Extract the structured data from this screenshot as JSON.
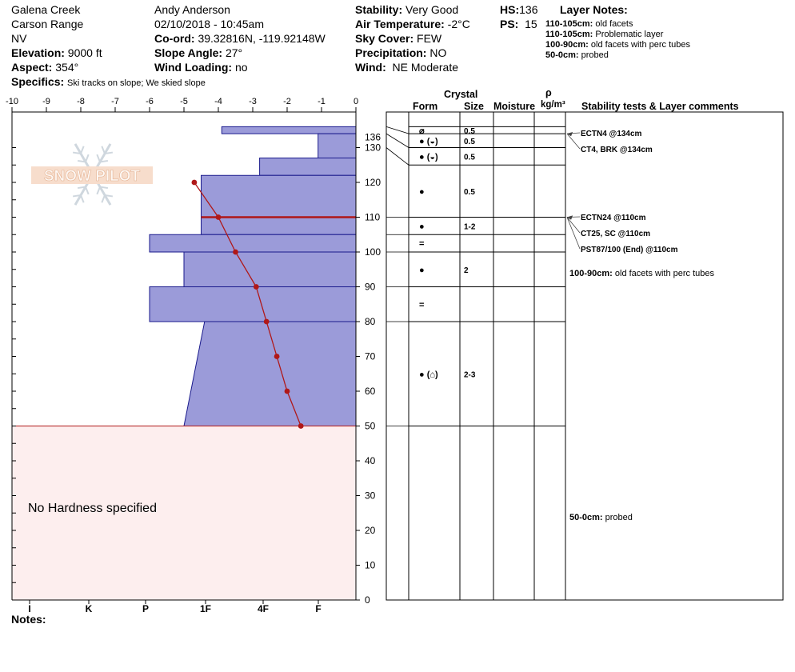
{
  "header": {
    "location": "Galena Creek",
    "range": "Carson Range",
    "state": "NV",
    "elevation_label": "Elevation:",
    "elevation_value": "9000 ft",
    "aspect_label": "Aspect:",
    "aspect_value": "354°",
    "specifics_label": "Specifics:",
    "specifics_value": "Ski tracks on slope; We skied slope",
    "observer": "Andy Anderson",
    "datetime": "02/10/2018 - 10:45am",
    "coord_label": "Co-ord:",
    "coord_value": "39.32816N, -119.92148W",
    "slope_label": "Slope Angle:",
    "slope_value": "27°",
    "wind_loading_label": "Wind Loading:",
    "wind_loading_value": "no",
    "stability_label": "Stability:",
    "stability_value": "Very Good",
    "air_temp_label": "Air Temperature:",
    "air_temp_value": "-2°C",
    "sky_label": "Sky Cover:",
    "sky_value": "FEW",
    "precip_label": "Precipitation:",
    "precip_value": "NO",
    "wind_label": "Wind:",
    "wind_value": "NE Moderate",
    "hs_label": "HS:",
    "hs_value": "136",
    "ps_label": "PS:",
    "ps_value": "15"
  },
  "layer_notes": {
    "title": "Layer Notes:",
    "items": [
      {
        "range": "110-105cm:",
        "note": "old facets"
      },
      {
        "range": "110-105cm:",
        "note": "Problematic layer"
      },
      {
        "range": "100-90cm:",
        "note": "old facets with perc tubes"
      },
      {
        "range": "50-0cm:",
        "note": "probed"
      }
    ]
  },
  "watermark": "SNOW PILOT",
  "no_hardness_text": "No Hardness specified",
  "notes_label": "Notes:",
  "table_headers": {
    "crystal": "Crystal",
    "form": "Form",
    "size": "Size",
    "moisture": "Moisture",
    "rho": "ρ",
    "density": "kg/m³",
    "stability": "Stability tests & Layer comments"
  },
  "colors": {
    "hardness_fill": "#9b9bd9",
    "hardness_edge": "#1a1a8c",
    "temp_line": "#b01818",
    "weak_layer": "#b01818",
    "no_hardness_fill": "#fdeeee"
  },
  "chart_data": {
    "type": "area",
    "temp_axis": {
      "ticks": [
        -10,
        -9,
        -8,
        -7,
        -6,
        -5,
        -4,
        -3,
        -2,
        -1,
        0
      ],
      "range": [
        -10,
        0
      ]
    },
    "depth_axis": {
      "ticks": [
        0,
        10,
        20,
        30,
        40,
        50,
        60,
        70,
        80,
        90,
        100,
        110,
        120,
        130
      ],
      "top_label": 136,
      "range": [
        0,
        136
      ]
    },
    "hardness_axis": {
      "labels": [
        "I",
        "K",
        "P",
        "1F",
        "4F",
        "F"
      ]
    },
    "hardness_profile": [
      {
        "top": 136,
        "bottom": 134,
        "left_temp": -3.9
      },
      {
        "top": 134,
        "bottom": 127,
        "left_temp": -1.1
      },
      {
        "top": 127,
        "bottom": 122,
        "left_temp": -2.8
      },
      {
        "top": 122,
        "bottom": 105,
        "left_temp": -4.5
      },
      {
        "top": 105,
        "bottom": 100,
        "left_temp": -6.0
      },
      {
        "top": 100,
        "bottom": 90,
        "left_temp": -5.0
      },
      {
        "top": 90,
        "bottom": 80,
        "left_temp": -6.0
      },
      {
        "top": 80,
        "bottom": 50,
        "left_temp_top": -4.4,
        "left_temp_bottom": -5.0
      }
    ],
    "weak_layer_depth": 110,
    "temperature_profile": {
      "depth": [
        120,
        110,
        100,
        90,
        80,
        70,
        60,
        50
      ],
      "temp": [
        -4.7,
        -4.0,
        -3.5,
        -2.9,
        -2.6,
        -2.3,
        -2.0,
        -1.6
      ]
    }
  },
  "layers": [
    {
      "top": 136,
      "bottom": 134,
      "form": "⌀",
      "size": "0.5",
      "comments": []
    },
    {
      "top": 134,
      "bottom": 130,
      "form": "● (◒)",
      "size": "0.5",
      "comments": []
    },
    {
      "top": 130,
      "bottom": 125,
      "form": "● (◒)",
      "size": "0.5",
      "comments": []
    },
    {
      "top": 125,
      "bottom": 110,
      "form": "●",
      "size": "0.5",
      "comments": []
    },
    {
      "top": 110,
      "bottom": 105,
      "form": "●",
      "size": "1-2",
      "comments": []
    },
    {
      "top": 105,
      "bottom": 100,
      "form": "=",
      "size": "",
      "comments": []
    },
    {
      "top": 100,
      "bottom": 90,
      "form": "●",
      "size": "2",
      "comments": []
    },
    {
      "top": 90,
      "bottom": 80,
      "form": "=",
      "size": "",
      "comments": []
    },
    {
      "top": 80,
      "bottom": 50,
      "form": "● (⌂)",
      "size": "2-3",
      "comments": []
    },
    {
      "top": 50,
      "bottom": 0,
      "form": "",
      "size": "",
      "comments": []
    }
  ],
  "stability_tests": [
    {
      "label": "ECTN4 @134cm",
      "depth": 134
    },
    {
      "label": "CT4, BRK @134cm",
      "depth": 134
    },
    {
      "label": "ECTN24 @110cm",
      "depth": 110
    },
    {
      "label": "CT25, SC @110cm",
      "depth": 110
    },
    {
      "label": "PST87/100 (End) @110cm",
      "depth": 110
    }
  ],
  "layer_comments": [
    {
      "range": "100-90cm:",
      "note": "old facets with perc tubes"
    },
    {
      "range": "50-0cm:",
      "note": "probed"
    }
  ]
}
